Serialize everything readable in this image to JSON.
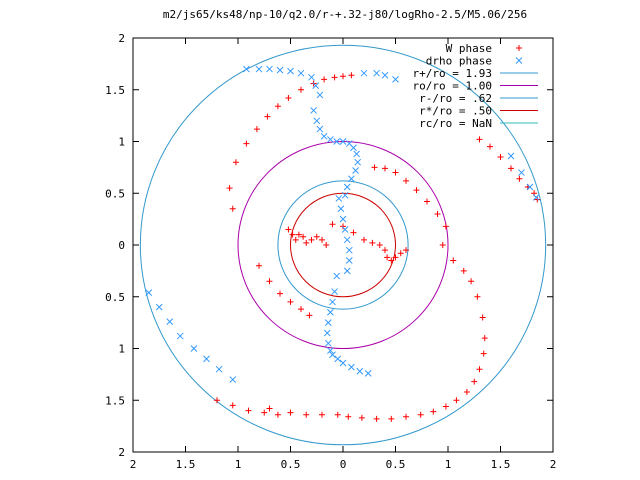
{
  "chart_data": {
    "type": "scatter",
    "title": "m2/js65/ks48/np-10/q2.0/r-+.32-j80/logRho-2.5/M5.06/256",
    "xlabel": "",
    "ylabel": "",
    "xlim": [
      -2,
      2
    ],
    "ylim": [
      -2,
      2
    ],
    "x_ticks": [
      "2",
      "1.5",
      "1",
      "0.5",
      "0",
      "0.5",
      "1",
      "1.5",
      "2"
    ],
    "y_ticks": [
      "2",
      "1.5",
      "1",
      "0.5",
      "0",
      "0.5",
      "1",
      "1.5",
      "2"
    ],
    "grid": false,
    "legend_position": "top-right",
    "legend": [
      {
        "label": "W phase",
        "marker": "+",
        "color": "#ff0000"
      },
      {
        "label": "drho phase",
        "marker": "x",
        "color": "#3399ff"
      },
      {
        "label": "r+/ro = 1.93",
        "line": true,
        "color": "#3399cc"
      },
      {
        "label": "ro/ro = 1.00",
        "line": true,
        "color": "#aa00aa"
      },
      {
        "label": "r-/ro = .62",
        "line": true,
        "color": "#3399cc"
      },
      {
        "label": "r*/ro = .50",
        "line": true,
        "color": "#cc0000"
      },
      {
        "label": "rc/ro = NaN",
        "line": true,
        "color": "#33bbbb"
      }
    ],
    "circles": [
      {
        "name": "r+/ro",
        "radius": 1.93,
        "color": "#3399cc"
      },
      {
        "name": "ro/ro",
        "radius": 1.0,
        "color": "#aa00aa"
      },
      {
        "name": "r-/ro",
        "radius": 0.62,
        "color": "#3399cc"
      },
      {
        "name": "r*/ro",
        "radius": 0.5,
        "color": "#cc0000"
      }
    ],
    "series": [
      {
        "name": "W phase",
        "color": "#ff0000",
        "x": [
          -1.05,
          -1.08,
          -1.02,
          -0.92,
          -0.82,
          -0.72,
          -0.62,
          -0.52,
          -0.4,
          -0.28,
          -0.18,
          -0.08,
          0.0,
          0.08,
          -0.52,
          -0.48,
          -0.45,
          -0.42,
          -0.38,
          -0.35,
          -0.3,
          -0.25,
          -0.2,
          -0.16,
          -0.8,
          -0.7,
          -0.6,
          -0.5,
          -0.4,
          -0.32,
          0.3,
          0.4,
          0.5,
          0.6,
          0.7,
          0.8,
          0.9,
          0.98,
          0.95,
          1.05,
          1.15,
          1.22,
          1.28,
          1.33,
          1.35,
          1.34,
          1.3,
          1.25,
          1.18,
          1.08,
          0.98,
          0.86,
          0.74,
          0.6,
          0.46,
          0.32,
          0.18,
          0.05,
          -0.05,
          -0.2,
          -0.35,
          -0.5,
          -0.7,
          -0.1,
          0.0,
          0.1,
          0.2,
          0.28,
          0.35,
          0.4,
          0.42,
          0.46,
          0.5,
          0.55,
          0.6,
          -1.2,
          -1.05,
          -0.9,
          -0.75,
          -0.62,
          1.3,
          1.4,
          1.5,
          1.6,
          1.68,
          1.76,
          1.82,
          1.85
        ],
        "y": [
          0.35,
          0.55,
          0.8,
          0.98,
          1.12,
          1.24,
          1.34,
          1.42,
          1.5,
          1.56,
          1.6,
          1.62,
          1.63,
          1.64,
          0.15,
          0.1,
          0.05,
          0.1,
          0.08,
          0.02,
          0.05,
          0.08,
          0.05,
          0.0,
          -0.2,
          -0.35,
          -0.47,
          -0.55,
          -0.62,
          -0.68,
          0.75,
          0.74,
          0.7,
          0.62,
          0.53,
          0.42,
          0.3,
          0.18,
          0.0,
          -0.15,
          -0.25,
          -0.35,
          -0.5,
          -0.7,
          -0.9,
          -1.05,
          -1.2,
          -1.32,
          -1.42,
          -1.5,
          -1.56,
          -1.61,
          -1.64,
          -1.66,
          -1.68,
          -1.68,
          -1.67,
          -1.66,
          -1.64,
          -1.64,
          -1.64,
          -1.62,
          -1.58,
          0.2,
          0.18,
          0.12,
          0.05,
          0.02,
          0.0,
          -0.05,
          -0.12,
          -0.15,
          -0.12,
          -0.08,
          -0.05,
          -1.5,
          -1.55,
          -1.6,
          -1.62,
          -1.64,
          1.02,
          0.95,
          0.85,
          0.74,
          0.64,
          0.56,
          0.5,
          0.44
        ]
      },
      {
        "name": "drho phase",
        "color": "#3399ff",
        "x": [
          -0.28,
          -0.25,
          -0.22,
          -0.18,
          -0.12,
          -0.06,
          0.0,
          0.06,
          0.1,
          0.13,
          0.14,
          0.12,
          0.08,
          0.04,
          0.02,
          0.2,
          0.32,
          0.4,
          0.5,
          -0.04,
          -0.02,
          0.0,
          0.02,
          0.04,
          0.06,
          0.06,
          0.04,
          -0.06,
          -0.08,
          -0.1,
          -0.12,
          -0.14,
          -0.15,
          -0.14,
          -0.12,
          -0.1,
          -0.05,
          0.0,
          0.08,
          0.16,
          0.24,
          -0.22,
          -0.26,
          -0.3,
          -0.4,
          -0.5,
          -0.6,
          -0.7,
          -0.8,
          -0.92,
          -1.05,
          -1.18,
          -1.3,
          -1.42,
          -1.55,
          -1.65,
          -1.75,
          -1.85,
          1.6,
          1.7,
          1.78,
          1.84
        ],
        "y": [
          1.3,
          1.2,
          1.12,
          1.05,
          1.02,
          1.0,
          1.0,
          0.98,
          0.94,
          0.88,
          0.8,
          0.72,
          0.64,
          0.56,
          0.48,
          1.66,
          1.66,
          1.64,
          1.6,
          0.45,
          0.35,
          0.25,
          0.15,
          0.05,
          -0.05,
          -0.15,
          -0.25,
          -0.3,
          -0.45,
          -0.55,
          -0.65,
          -0.75,
          -0.85,
          -0.95,
          -1.02,
          -1.06,
          -1.1,
          -1.14,
          -1.18,
          -1.22,
          -1.24,
          1.45,
          1.54,
          1.62,
          1.66,
          1.68,
          1.69,
          1.7,
          1.7,
          1.7,
          -1.3,
          -1.2,
          -1.1,
          -1.0,
          -0.88,
          -0.74,
          -0.6,
          -0.46,
          0.86,
          0.7,
          0.56,
          0.46
        ]
      }
    ]
  }
}
